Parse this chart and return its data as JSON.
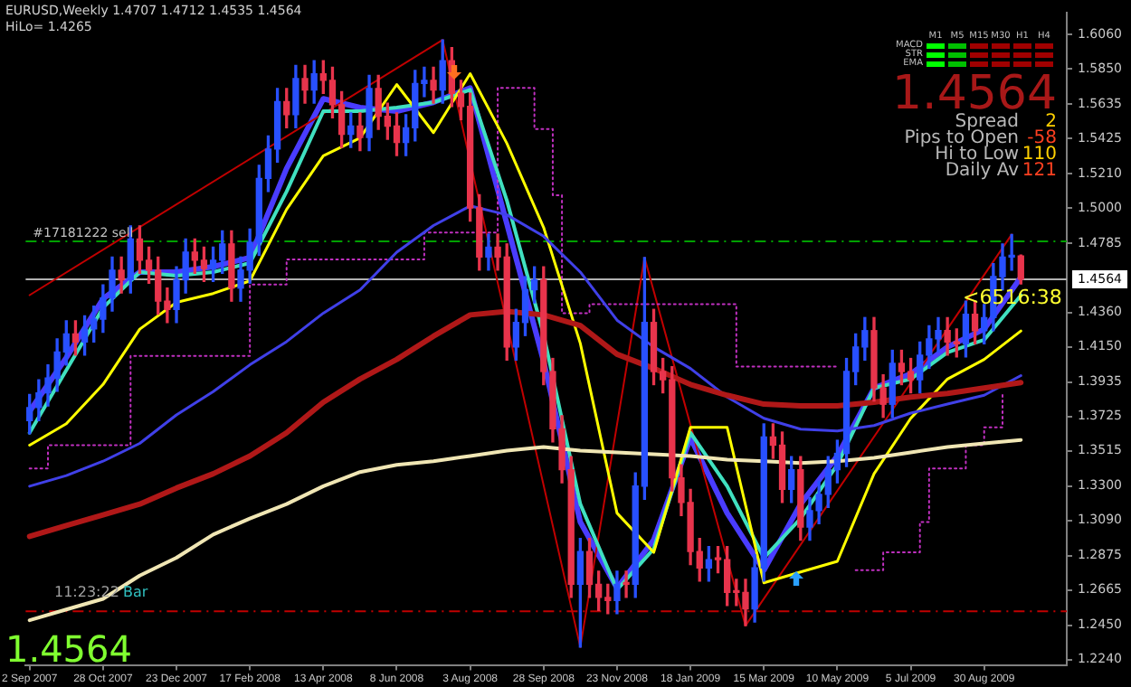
{
  "chart_data": {
    "type": "candlestick",
    "title": "EURUSD,Weekly  1.4707 1.4712 1.4535 1.4564",
    "subtitle": "HiLo= 1.4265",
    "x": [
      "2007-09-02",
      "2007-09-09",
      "2007-09-16",
      "2007-09-23",
      "2007-09-30",
      "2007-10-07",
      "2007-10-14",
      "2007-10-21",
      "2007-10-28",
      "2007-11-04",
      "2007-11-11",
      "2007-11-18",
      "2007-11-25",
      "2007-12-02",
      "2007-12-09",
      "2007-12-16",
      "2007-12-23",
      "2007-12-30",
      "2008-01-06",
      "2008-01-13",
      "2008-01-20",
      "2008-01-27",
      "2008-02-03",
      "2008-02-10",
      "2008-02-17",
      "2008-02-24",
      "2008-03-02",
      "2008-03-09",
      "2008-03-16",
      "2008-03-23",
      "2008-03-30",
      "2008-04-06",
      "2008-04-13",
      "2008-04-20",
      "2008-04-27",
      "2008-05-04",
      "2008-05-11",
      "2008-05-18",
      "2008-05-25",
      "2008-06-01",
      "2008-06-08",
      "2008-06-15",
      "2008-06-22",
      "2008-06-29",
      "2008-07-06",
      "2008-07-13",
      "2008-07-20",
      "2008-07-27",
      "2008-08-03",
      "2008-08-10",
      "2008-08-17",
      "2008-08-24",
      "2008-08-31",
      "2008-09-07",
      "2008-09-14",
      "2008-09-21",
      "2008-09-28",
      "2008-10-05",
      "2008-10-12",
      "2008-10-19",
      "2008-10-26",
      "2008-11-02",
      "2008-11-09",
      "2008-11-16",
      "2008-11-23",
      "2008-11-30",
      "2008-12-07",
      "2008-12-14",
      "2008-12-21",
      "2008-12-28",
      "2009-01-04",
      "2009-01-11",
      "2009-01-18",
      "2009-01-25",
      "2009-02-01",
      "2009-02-08",
      "2009-02-15",
      "2009-02-22",
      "2009-03-01",
      "2009-03-08",
      "2009-03-15",
      "2009-03-22",
      "2009-03-29",
      "2009-04-05",
      "2009-04-12",
      "2009-04-19",
      "2009-04-26",
      "2009-05-03",
      "2009-05-10",
      "2009-05-17",
      "2009-05-24",
      "2009-05-31",
      "2009-06-07",
      "2009-06-14",
      "2009-06-21",
      "2009-06-28",
      "2009-07-05",
      "2009-07-12",
      "2009-07-19",
      "2009-07-26",
      "2009-08-02",
      "2009-08-09",
      "2009-08-16",
      "2009-08-23",
      "2009-08-30",
      "2009-09-06",
      "2009-09-13",
      "2009-09-20",
      "2009-09-27"
    ],
    "ohlc": [
      [
        1.37,
        1.386,
        1.362,
        1.378
      ],
      [
        1.378,
        1.395,
        1.37,
        1.387
      ],
      [
        1.387,
        1.404,
        1.379,
        1.396
      ],
      [
        1.396,
        1.42,
        1.388,
        1.412
      ],
      [
        1.412,
        1.431,
        1.404,
        1.423
      ],
      [
        1.423,
        1.431,
        1.41,
        1.418
      ],
      [
        1.418,
        1.434,
        1.41,
        1.426
      ],
      [
        1.426,
        1.44,
        1.418,
        1.432
      ],
      [
        1.432,
        1.453,
        1.424,
        1.445
      ],
      [
        1.445,
        1.47,
        1.437,
        1.462
      ],
      [
        1.462,
        1.47,
        1.448,
        1.456
      ],
      [
        1.456,
        1.489,
        1.448,
        1.481
      ],
      [
        1.481,
        1.489,
        1.46,
        1.468
      ],
      [
        1.468,
        1.476,
        1.454,
        1.462
      ],
      [
        1.462,
        1.47,
        1.435,
        1.443
      ],
      [
        1.443,
        1.451,
        1.43,
        1.438
      ],
      [
        1.438,
        1.464,
        1.43,
        1.456
      ],
      [
        1.456,
        1.481,
        1.448,
        1.473
      ],
      [
        1.473,
        1.481,
        1.46,
        1.468
      ],
      [
        1.468,
        1.476,
        1.455,
        1.463
      ],
      [
        1.463,
        1.476,
        1.455,
        1.468
      ],
      [
        1.468,
        1.486,
        1.46,
        1.478
      ],
      [
        1.478,
        1.486,
        1.443,
        1.451
      ],
      [
        1.451,
        1.47,
        1.443,
        1.462
      ],
      [
        1.462,
        1.487,
        1.454,
        1.479
      ],
      [
        1.479,
        1.526,
        1.471,
        1.518
      ],
      [
        1.518,
        1.544,
        1.51,
        1.536
      ],
      [
        1.536,
        1.573,
        1.528,
        1.565
      ],
      [
        1.565,
        1.573,
        1.549,
        1.557
      ],
      [
        1.557,
        1.587,
        1.549,
        1.579
      ],
      [
        1.579,
        1.587,
        1.564,
        1.572
      ],
      [
        1.572,
        1.59,
        1.564,
        1.582
      ],
      [
        1.582,
        1.59,
        1.57,
        1.578
      ],
      [
        1.578,
        1.586,
        1.555,
        1.563
      ],
      [
        1.563,
        1.571,
        1.537,
        1.545
      ],
      [
        1.545,
        1.558,
        1.537,
        1.55
      ],
      [
        1.55,
        1.558,
        1.535,
        1.543
      ],
      [
        1.543,
        1.581,
        1.535,
        1.573
      ],
      [
        1.573,
        1.581,
        1.548,
        1.556
      ],
      [
        1.556,
        1.564,
        1.542,
        1.55
      ],
      [
        1.55,
        1.558,
        1.532,
        1.54
      ],
      [
        1.54,
        1.557,
        1.532,
        1.549
      ],
      [
        1.549,
        1.584,
        1.541,
        1.576
      ],
      [
        1.576,
        1.586,
        1.568,
        1.578
      ],
      [
        1.578,
        1.586,
        1.564,
        1.572
      ],
      [
        1.572,
        1.6027,
        1.564,
        1.59
      ],
      [
        1.59,
        1.598,
        1.562,
        1.57
      ],
      [
        1.57,
        1.578,
        1.554,
        1.562
      ],
      [
        1.562,
        1.57,
        1.492,
        1.5
      ],
      [
        1.5,
        1.508,
        1.462,
        1.47
      ],
      [
        1.47,
        1.484,
        1.462,
        1.476
      ],
      [
        1.476,
        1.484,
        1.462,
        1.47
      ],
      [
        1.47,
        1.478,
        1.407,
        1.415
      ],
      [
        1.415,
        1.438,
        1.407,
        1.43
      ],
      [
        1.43,
        1.458,
        1.422,
        1.45
      ],
      [
        1.45,
        1.464,
        1.442,
        1.456
      ],
      [
        1.456,
        1.464,
        1.392,
        1.4
      ],
      [
        1.4,
        1.408,
        1.357,
        1.365
      ],
      [
        1.365,
        1.373,
        1.332,
        1.34
      ],
      [
        1.34,
        1.348,
        1.262,
        1.27
      ],
      [
        1.27,
        1.298,
        1.2316,
        1.29
      ],
      [
        1.29,
        1.298,
        1.262,
        1.27
      ],
      [
        1.27,
        1.278,
        1.254,
        1.262
      ],
      [
        1.262,
        1.27,
        1.252,
        1.26
      ],
      [
        1.26,
        1.278,
        1.252,
        1.27
      ],
      [
        1.27,
        1.278,
        1.262,
        1.27
      ],
      [
        1.27,
        1.338,
        1.262,
        1.33
      ],
      [
        1.33,
        1.4696,
        1.322,
        1.43
      ],
      [
        1.43,
        1.438,
        1.392,
        1.4
      ],
      [
        1.4,
        1.408,
        1.387,
        1.395
      ],
      [
        1.395,
        1.403,
        1.327,
        1.335
      ],
      [
        1.335,
        1.343,
        1.312,
        1.32
      ],
      [
        1.32,
        1.328,
        1.282,
        1.29
      ],
      [
        1.29,
        1.298,
        1.272,
        1.28
      ],
      [
        1.28,
        1.293,
        1.272,
        1.285
      ],
      [
        1.285,
        1.293,
        1.277,
        1.285
      ],
      [
        1.285,
        1.293,
        1.257,
        1.265
      ],
      [
        1.265,
        1.273,
        1.257,
        1.265
      ],
      [
        1.265,
        1.273,
        1.2447,
        1.255
      ],
      [
        1.255,
        1.288,
        1.247,
        1.28
      ],
      [
        1.28,
        1.368,
        1.272,
        1.36
      ],
      [
        1.36,
        1.368,
        1.347,
        1.355
      ],
      [
        1.355,
        1.363,
        1.32,
        1.328
      ],
      [
        1.328,
        1.348,
        1.32,
        1.34
      ],
      [
        1.34,
        1.348,
        1.297,
        1.305
      ],
      [
        1.305,
        1.323,
        1.297,
        1.315
      ],
      [
        1.315,
        1.333,
        1.307,
        1.325
      ],
      [
        1.325,
        1.348,
        1.317,
        1.34
      ],
      [
        1.34,
        1.358,
        1.332,
        1.35
      ],
      [
        1.35,
        1.408,
        1.342,
        1.4
      ],
      [
        1.4,
        1.423,
        1.392,
        1.415
      ],
      [
        1.415,
        1.433,
        1.407,
        1.425
      ],
      [
        1.425,
        1.433,
        1.382,
        1.39
      ],
      [
        1.39,
        1.398,
        1.372,
        1.38
      ],
      [
        1.38,
        1.413,
        1.372,
        1.405
      ],
      [
        1.405,
        1.413,
        1.392,
        1.4
      ],
      [
        1.4,
        1.408,
        1.387,
        1.395
      ],
      [
        1.395,
        1.418,
        1.387,
        1.41
      ],
      [
        1.41,
        1.428,
        1.402,
        1.42
      ],
      [
        1.42,
        1.433,
        1.412,
        1.425
      ],
      [
        1.425,
        1.433,
        1.41,
        1.418
      ],
      [
        1.418,
        1.426,
        1.409,
        1.417
      ],
      [
        1.417,
        1.443,
        1.409,
        1.435
      ],
      [
        1.435,
        1.443,
        1.417,
        1.425
      ],
      [
        1.425,
        1.441,
        1.417,
        1.433
      ],
      [
        1.433,
        1.466,
        1.425,
        1.458
      ],
      [
        1.458,
        1.478,
        1.45,
        1.47
      ],
      [
        1.47,
        1.4838,
        1.462,
        1.4707
      ],
      [
        1.4707,
        1.4712,
        1.4535,
        1.4564
      ]
    ],
    "colors": [
      "#2850ff",
      "#2850ff",
      "#2850ff",
      "#2850ff",
      "#2850ff",
      "#e8344c",
      "#2850ff",
      "#2850ff",
      "#2850ff",
      "#2850ff",
      "#e8344c",
      "#2850ff",
      "#e8344c",
      "#e8344c",
      "#e8344c",
      "#e8344c",
      "#2850ff",
      "#2850ff",
      "#e8344c",
      "#e8344c",
      "#2850ff",
      "#2850ff",
      "#e8344c",
      "#2850ff",
      "#2850ff",
      "#2850ff",
      "#2850ff",
      "#2850ff",
      "#e8344c",
      "#2850ff",
      "#e8344c",
      "#2850ff",
      "#e8344c",
      "#e8344c",
      "#e8344c",
      "#2850ff",
      "#e8344c",
      "#2850ff",
      "#e8344c",
      "#e8344c",
      "#e8344c",
      "#2850ff",
      "#2850ff",
      "#2850ff",
      "#e8344c",
      "#2850ff",
      "#e8344c",
      "#e8344c",
      "#e8344c",
      "#e8344c",
      "#2850ff",
      "#e8344c",
      "#e8344c",
      "#2850ff",
      "#2850ff",
      "#2850ff",
      "#e8344c",
      "#e8344c",
      "#e8344c",
      "#e8344c",
      "#2850ff",
      "#e8344c",
      "#e8344c",
      "#e8344c",
      "#2850ff",
      "#e8344c",
      "#2850ff",
      "#2850ff",
      "#e8344c",
      "#e8344c",
      "#e8344c",
      "#e8344c",
      "#e8344c",
      "#e8344c",
      "#2850ff",
      "#e8344c",
      "#e8344c",
      "#e8344c",
      "#e8344c",
      "#2850ff",
      "#2850ff",
      "#e8344c",
      "#e8344c",
      "#2850ff",
      "#e8344c",
      "#2850ff",
      "#2850ff",
      "#2850ff",
      "#2850ff",
      "#2850ff",
      "#2850ff",
      "#2850ff",
      "#e8344c",
      "#e8344c",
      "#2850ff",
      "#e8344c",
      "#e8344c",
      "#2850ff",
      "#2850ff",
      "#2850ff",
      "#e8344c",
      "#e8344c",
      "#2850ff",
      "#e8344c",
      "#2850ff",
      "#2850ff",
      "#2850ff",
      "#2850ff",
      "#e8344c"
    ],
    "series": [
      {
        "type": "line",
        "color": "#f0e6b4",
        "x": [
          "2007-09-02",
          "2007-09-30",
          "2007-10-28",
          "2007-11-25",
          "2007-12-23",
          "2008-01-20",
          "2008-02-17",
          "2008-03-16",
          "2008-04-13",
          "2008-05-11",
          "2008-06-08",
          "2008-07-06",
          "2008-08-03",
          "2008-08-31",
          "2008-09-28",
          "2008-10-26",
          "2008-11-23",
          "2008-12-21",
          "2009-01-18",
          "2009-02-15",
          "2009-03-15",
          "2009-04-12",
          "2009-05-10",
          "2009-06-07",
          "2009-07-05",
          "2009-08-02",
          "2009-08-30",
          "2009-09-27"
        ],
        "values": [
          1.248,
          1.2546,
          1.2611,
          1.2753,
          1.2862,
          1.3004,
          1.3102,
          1.319,
          1.3299,
          1.3386,
          1.343,
          1.3452,
          1.3484,
          1.3517,
          1.3539,
          1.3517,
          1.3506,
          1.3495,
          1.3484,
          1.3462,
          1.3452,
          1.3441,
          1.3452,
          1.3473,
          1.3506,
          1.3539,
          1.3561,
          1.3582
        ]
      },
      {
        "type": "line",
        "color": "#b01818",
        "x": [
          "2007-09-02",
          "2007-09-30",
          "2007-10-28",
          "2007-11-25",
          "2007-12-23",
          "2008-01-20",
          "2008-02-17",
          "2008-03-16",
          "2008-04-13",
          "2008-05-11",
          "2008-06-08",
          "2008-07-06",
          "2008-08-03",
          "2008-08-31",
          "2008-09-28",
          "2008-10-26",
          "2008-11-23",
          "2008-12-21",
          "2009-01-18",
          "2009-02-15",
          "2009-03-15",
          "2009-04-12",
          "2009-05-10",
          "2009-06-07",
          "2009-07-05",
          "2009-08-02",
          "2009-08-30",
          "2009-09-27"
        ],
        "values": [
          1.2993,
          1.3059,
          1.3124,
          1.319,
          1.3288,
          1.3375,
          1.3484,
          1.3626,
          1.3812,
          1.3954,
          1.4074,
          1.4216,
          1.4346,
          1.4368,
          1.4346,
          1.4281,
          1.4106,
          1.4019,
          1.3921,
          1.3855,
          1.3801,
          1.379,
          1.379,
          1.3812,
          1.3844,
          1.3866,
          1.3899,
          1.3932
        ]
      },
      {
        "type": "line",
        "color": "#4040e8",
        "x": [
          "2007-09-02",
          "2007-09-30",
          "2007-10-28",
          "2007-11-25",
          "2007-12-23",
          "2008-01-20",
          "2008-02-17",
          "2008-03-16",
          "2008-04-13",
          "2008-05-11",
          "2008-06-08",
          "2008-07-06",
          "2008-08-03",
          "2008-08-31",
          "2008-09-28",
          "2008-10-26",
          "2008-11-23",
          "2008-12-21",
          "2009-01-18",
          "2009-02-15",
          "2009-03-15",
          "2009-04-12",
          "2009-05-10",
          "2009-06-07",
          "2009-07-05",
          "2009-08-02",
          "2009-08-30",
          "2009-09-27"
        ],
        "values": [
          1.3299,
          1.3364,
          1.3452,
          1.3561,
          1.3735,
          1.3877,
          1.4041,
          1.4183,
          1.4357,
          1.4499,
          1.4729,
          1.4892,
          1.5012,
          1.4958,
          1.4827,
          1.4608,
          1.4314,
          1.415,
          1.4019,
          1.3844,
          1.3714,
          1.3648,
          1.3637,
          1.367,
          1.3746,
          1.3801,
          1.3855,
          1.3975
        ]
      },
      {
        "type": "line",
        "color": "#ffff00",
        "x": [
          "2007-09-02",
          "2007-09-30",
          "2007-10-28",
          "2007-11-25",
          "2007-12-23",
          "2008-01-20",
          "2008-02-17",
          "2008-03-16",
          "2008-04-13",
          "2008-05-11",
          "2008-06-08",
          "2008-07-06",
          "2008-08-03",
          "2008-08-31",
          "2008-09-28",
          "2008-10-26",
          "2008-11-23",
          "2008-12-21",
          "2009-01-18",
          "2009-02-15",
          "2009-03-15",
          "2009-04-12",
          "2009-05-10",
          "2009-06-07",
          "2009-07-05",
          "2009-08-02",
          "2009-08-30",
          "2009-09-27"
        ],
        "values": [
          1.355,
          1.3681,
          1.3921,
          1.4259,
          1.4423,
          1.4477,
          1.4554,
          1.4991,
          1.5318,
          1.5427,
          1.5754,
          1.546,
          1.582,
          1.5394,
          1.4881,
          1.4172,
          1.3135,
          1.2895,
          1.3659,
          1.3659,
          1.2709,
          1.2775,
          1.284,
          1.3375,
          1.3714,
          1.3954,
          1.4074,
          1.4248
        ]
      },
      {
        "type": "line",
        "color": "#40e0c0",
        "x": [
          "2007-09-02",
          "2007-09-30",
          "2007-10-28",
          "2007-11-25",
          "2007-12-23",
          "2008-01-20",
          "2008-02-17",
          "2008-03-16",
          "2008-04-13",
          "2008-05-11",
          "2008-06-08",
          "2008-07-06",
          "2008-08-03",
          "2008-08-31",
          "2008-09-28",
          "2008-10-26",
          "2008-11-23",
          "2008-12-21",
          "2009-01-18",
          "2009-02-15",
          "2009-03-15",
          "2009-04-12",
          "2009-05-10",
          "2009-06-07",
          "2009-07-05",
          "2009-08-02",
          "2009-08-30",
          "2009-09-27"
        ],
        "values": [
          1.3626,
          1.4008,
          1.439,
          1.4608,
          1.4586,
          1.4608,
          1.4663,
          1.51,
          1.5591,
          1.5591,
          1.5613,
          1.5645,
          1.5722,
          1.5045,
          1.4226,
          1.319,
          1.2666,
          1.2917,
          1.3626,
          1.3299,
          1.2862,
          1.3102,
          1.343,
          1.3899,
          1.3954,
          1.4117,
          1.4194,
          1.4466
        ]
      },
      {
        "type": "line",
        "color": "#4a3cff",
        "x": [
          "2007-09-02",
          "2007-09-30",
          "2007-10-28",
          "2007-11-25",
          "2007-12-23",
          "2008-01-20",
          "2008-02-17",
          "2008-03-16",
          "2008-04-13",
          "2008-05-11",
          "2008-06-08",
          "2008-07-06",
          "2008-08-03",
          "2008-08-31",
          "2008-09-28",
          "2008-10-26",
          "2008-11-23",
          "2008-12-21",
          "2009-01-18",
          "2009-02-15",
          "2009-03-15",
          "2009-04-12",
          "2009-05-10",
          "2009-06-07",
          "2009-07-05",
          "2009-08-02",
          "2009-08-30",
          "2009-09-27"
        ],
        "values": [
          1.3757,
          1.4085,
          1.4445,
          1.4608,
          1.4608,
          1.4641,
          1.4696,
          1.5241,
          1.5667,
          1.5613,
          1.5591,
          1.5645,
          1.5733,
          1.4903,
          1.4063,
          1.308,
          1.2677,
          1.2971,
          1.3594,
          1.3135,
          1.2786,
          1.319,
          1.3484,
          1.3899,
          1.3986,
          1.415,
          1.4259,
          1.4576
        ]
      },
      {
        "type": "step",
        "color": "#c030c0",
        "line_style": "dotted",
        "x": [
          "2007-09-02",
          "2007-09-16",
          "2007-11-18",
          "2008-02-17",
          "2008-03-16",
          "2008-06-29",
          "2008-08-24",
          "2008-09-21",
          "2008-10-05",
          "2008-10-12",
          "2008-11-02",
          "2009-02-08",
          "2009-02-22",
          "2009-05-10",
          "2009-05-17",
          "2009-05-24",
          "2009-06-14",
          "2009-07-12",
          "2009-07-19",
          "2009-08-16",
          "2009-08-30",
          "2009-09-13"
        ],
        "values": [
          1.3408,
          1.355,
          1.4095,
          1.4532,
          1.4685,
          1.4849,
          1.5733,
          1.5482,
          1.5078,
          1.4357,
          1.4412,
          1.4412,
          1.403,
          1.403,
          null,
          1.2786,
          1.2895,
          1.308,
          1.3408,
          1.355,
          1.3659,
          1.3877
        ]
      },
      {
        "type": "line",
        "color": "#c00000",
        "x": [
          "2007-09-02",
          "2008-07-13",
          "2008-10-26",
          "2008-12-14",
          "2009-03-01",
          "2009-09-20"
        ],
        "values": [
          1.4467,
          1.6027,
          1.2316,
          1.4696,
          1.2447,
          1.4838
        ]
      }
    ],
    "xlim": [
      "2007-08-30",
      "2009-11-01"
    ],
    "xticks": [
      {
        "value": "2007-09-02",
        "label": "2 Sep 2007"
      },
      {
        "value": "2007-10-28",
        "label": "28 Oct 2007"
      },
      {
        "value": "2007-12-23",
        "label": "23 Dec 2007"
      },
      {
        "value": "2008-02-17",
        "label": "17 Feb 2008"
      },
      {
        "value": "2008-04-13",
        "label": "13 Apr 2008"
      },
      {
        "value": "2008-06-08",
        "label": "8 Jun 2008"
      },
      {
        "value": "2008-08-03",
        "label": "3 Aug 2008"
      },
      {
        "value": "2008-09-28",
        "label": "28 Sep 2008"
      },
      {
        "value": "2008-11-23",
        "label": "23 Nov 2008"
      },
      {
        "value": "2009-01-18",
        "label": "18 Jan 2009"
      },
      {
        "value": "2009-03-15",
        "label": "15 Mar 2009"
      },
      {
        "value": "2009-05-10",
        "label": "10 May 2009"
      },
      {
        "value": "2009-07-05",
        "label": "5 Jul 2009"
      },
      {
        "value": "2009-08-30",
        "label": "30 Aug 2009"
      }
    ],
    "ylim": [
      1.2207,
      1.6191
    ],
    "yticks": [
      {
        "value": 1.606,
        "label": "1.6060"
      },
      {
        "value": 1.585,
        "label": "1.5850"
      },
      {
        "value": 1.5635,
        "label": "1.5635"
      },
      {
        "value": 1.5425,
        "label": "1.5425"
      },
      {
        "value": 1.521,
        "label": "1.5210"
      },
      {
        "value": 1.5,
        "label": "1.5000"
      },
      {
        "value": 1.4785,
        "label": "1.4785"
      },
      {
        "value": 1.436,
        "label": "1.4360"
      },
      {
        "value": 1.415,
        "label": "1.4150"
      },
      {
        "value": 1.3935,
        "label": "1.3935"
      },
      {
        "value": 1.3725,
        "label": "1.3725"
      },
      {
        "value": 1.3515,
        "label": "1.3515"
      },
      {
        "value": 1.33,
        "label": "1.3300"
      },
      {
        "value": 1.309,
        "label": "1.3090"
      },
      {
        "value": 1.2875,
        "label": "1.2875"
      },
      {
        "value": 1.2665,
        "label": "1.2665"
      },
      {
        "value": 1.245,
        "label": "1.2450"
      },
      {
        "value": 1.224,
        "label": "1.2240"
      }
    ],
    "ref_lines": [
      {
        "axis": "y",
        "value": 1.4795,
        "label": "#17181222 sell",
        "color": "#00a000",
        "line_style": "dashed"
      },
      {
        "axis": "y",
        "value": 1.4564,
        "label": "1.4564",
        "color": "#b0b0b0",
        "line_style": "solid"
      },
      {
        "axis": "y",
        "value": 1.2535,
        "color": "#c00000",
        "line_style": "dashed"
      }
    ],
    "annotations": [
      "M1",
      "M5",
      "M15",
      "M30",
      "H1",
      "H4",
      "MACD",
      "STR",
      "EMA",
      "1.4564",
      "Spread",
      "2",
      "Pips to Open",
      "-58",
      "Hi to Low",
      "110",
      "Daily Av",
      "121",
      "<6516:38",
      "11:23:22",
      "Bar",
      "1.4564"
    ]
  }
}
